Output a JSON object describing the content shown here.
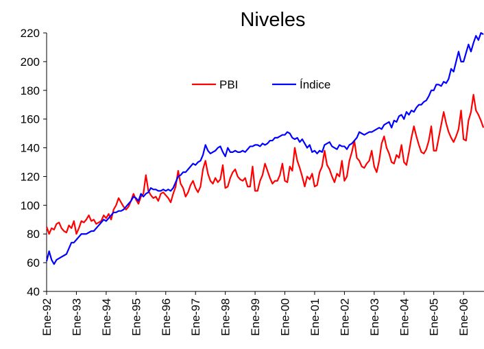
{
  "chart_data": {
    "type": "line",
    "title": "Niveles",
    "categories": [
      "Ene-92",
      null,
      null,
      null,
      null,
      null,
      null,
      null,
      null,
      null,
      null,
      null,
      "Ene-93",
      null,
      null,
      null,
      null,
      null,
      null,
      null,
      null,
      null,
      null,
      null,
      "Ene-94",
      null,
      null,
      null,
      null,
      null,
      null,
      null,
      null,
      null,
      null,
      null,
      "Ene-95",
      null,
      null,
      null,
      null,
      null,
      null,
      null,
      null,
      null,
      null,
      null,
      "Ene-96",
      null,
      null,
      null,
      null,
      null,
      null,
      null,
      null,
      null,
      null,
      null,
      "Ene-97",
      null,
      null,
      null,
      null,
      null,
      null,
      null,
      null,
      null,
      null,
      null,
      "Ene-98",
      null,
      null,
      null,
      null,
      null,
      null,
      null,
      null,
      null,
      null,
      null,
      "Ene-99",
      null,
      null,
      null,
      null,
      null,
      null,
      null,
      null,
      null,
      null,
      null,
      "Ene-00",
      null,
      null,
      null,
      null,
      null,
      null,
      null,
      null,
      null,
      null,
      null,
      "Ene-01",
      null,
      null,
      null,
      null,
      null,
      null,
      null,
      null,
      null,
      null,
      null,
      "Ene-02",
      null,
      null,
      null,
      null,
      null,
      null,
      null,
      null,
      null,
      null,
      null,
      "Ene-03",
      null,
      null,
      null,
      null,
      null,
      null,
      null,
      null,
      null,
      null,
      null,
      "Ene-04",
      null,
      null,
      null,
      null,
      null,
      null,
      null,
      null,
      null,
      null,
      null,
      "Ene-05",
      null,
      null,
      null,
      null,
      null,
      null,
      null,
      null,
      null,
      null,
      null,
      "Ene-06",
      null,
      null,
      null,
      null,
      null,
      null,
      null,
      null
    ],
    "series": [
      {
        "name": "PBI",
        "color": "#ff0000",
        "values": [
          85,
          80,
          84,
          83,
          87,
          88,
          84,
          82,
          81,
          86,
          84,
          89,
          80,
          84,
          89,
          88,
          90,
          93,
          89,
          90,
          87,
          88,
          89,
          93,
          91,
          94,
          90,
          97,
          100,
          105,
          102,
          99,
          97,
          99,
          103,
          108,
          104,
          101,
          106,
          108,
          121,
          110,
          107,
          105,
          106,
          103,
          108,
          109,
          107,
          105,
          102,
          108,
          113,
          124,
          115,
          112,
          106,
          109,
          114,
          117,
          112,
          109,
          113,
          125,
          131,
          122,
          117,
          115,
          119,
          116,
          118,
          128,
          112,
          113,
          119,
          123,
          125,
          120,
          118,
          117,
          119,
          113,
          113,
          127,
          110,
          110,
          117,
          121,
          129,
          124,
          119,
          115,
          117,
          117,
          121,
          129,
          117,
          116,
          127,
          124,
          140,
          131,
          126,
          120,
          113,
          120,
          118,
          122,
          113,
          114,
          123,
          127,
          138,
          128,
          125,
          120,
          116,
          122,
          120,
          131,
          117,
          120,
          131,
          137,
          145,
          133,
          131,
          127,
          126,
          129,
          131,
          138,
          127,
          123,
          131,
          143,
          148,
          140,
          136,
          130,
          129,
          135,
          133,
          142,
          130,
          128,
          137,
          147,
          155,
          148,
          142,
          137,
          136,
          139,
          145,
          155,
          138,
          138,
          147,
          156,
          165,
          157,
          151,
          147,
          144,
          148,
          153,
          166,
          146,
          145,
          159,
          165,
          177,
          166,
          163,
          159,
          154
        ]
      },
      {
        "name": "Índice",
        "color": "#0000ff",
        "values": [
          61,
          68,
          62,
          59,
          62,
          63,
          64,
          65,
          66,
          70,
          74,
          74,
          76,
          78,
          80,
          80,
          80,
          81,
          82,
          82,
          84,
          86,
          88,
          90,
          89,
          91,
          93,
          95,
          95,
          96,
          96,
          97,
          99,
          101,
          103,
          106,
          105,
          103,
          108,
          106,
          108,
          109,
          112,
          111,
          111,
          110,
          110,
          111,
          110,
          111,
          110,
          112,
          116,
          120,
          121,
          123,
          123,
          125,
          127,
          129,
          128,
          130,
          131,
          135,
          142,
          138,
          136,
          137,
          138,
          140,
          141,
          137,
          134,
          140,
          137,
          137,
          138,
          137,
          137,
          138,
          137,
          139,
          141,
          141,
          142,
          142,
          141,
          143,
          142,
          143,
          145,
          145,
          147,
          147,
          148,
          149,
          149,
          151,
          150,
          147,
          146,
          147,
          144,
          146,
          143,
          140,
          142,
          137,
          138,
          136,
          138,
          137,
          142,
          143,
          144,
          141,
          140,
          139,
          142,
          141,
          141,
          139,
          142,
          143,
          145,
          147,
          151,
          150,
          149,
          150,
          151,
          151,
          152,
          153,
          154,
          153,
          156,
          157,
          158,
          154,
          159,
          158,
          162,
          163,
          160,
          165,
          163,
          166,
          165,
          168,
          170,
          170,
          172,
          173,
          176,
          180,
          180,
          184,
          184,
          183,
          186,
          185,
          188,
          195,
          193,
          200,
          207,
          200,
          200,
          206,
          212,
          207,
          213,
          218,
          215,
          220,
          219
        ]
      }
    ],
    "ylim": [
      40,
      220
    ],
    "yticks": [
      40,
      60,
      80,
      100,
      120,
      140,
      160,
      180,
      200,
      220
    ],
    "grid": false,
    "legend": "top-center"
  }
}
